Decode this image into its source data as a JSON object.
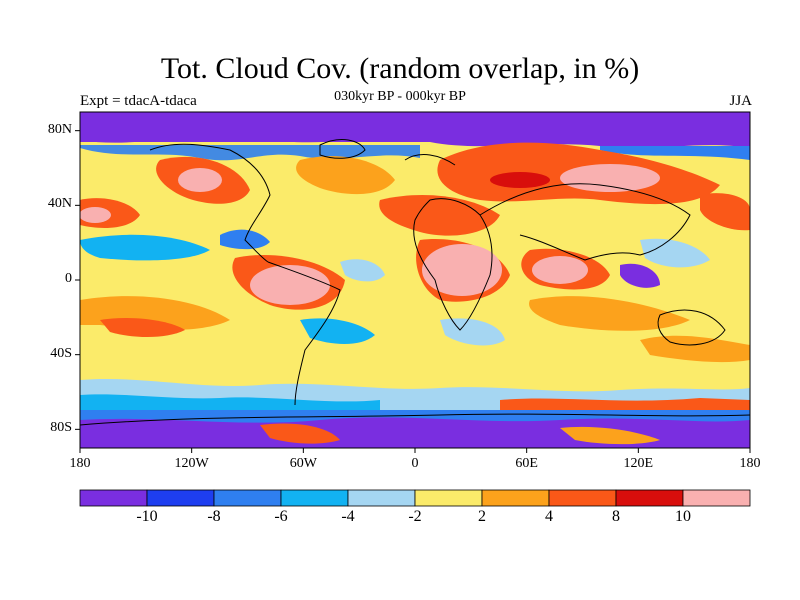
{
  "title": "Tot. Cloud Cov. (random overlap, in %)",
  "left_annotation": "Expt = tdacA-tdaca",
  "center_annotation": "030kyr BP - 000kyr BP",
  "right_annotation": "JJA",
  "x_ticks": [
    "180",
    "120W",
    "60W",
    "0",
    "60E",
    "120E",
    "180"
  ],
  "y_ticks": [
    "80N",
    "40N",
    "0",
    "40S",
    "80S"
  ],
  "colorbar": {
    "colors": [
      "#7a2ee0",
      "#1e3ef0",
      "#2f7ff0",
      "#12b2f2",
      "#a5d6f2",
      "#fbeb6a",
      "#fca21c",
      "#fa5818",
      "#d80e0c",
      "#f9b0b0"
    ],
    "labels": [
      "-10",
      "-8",
      "-6",
      "-4",
      "-2",
      "2",
      "4",
      "8",
      "10"
    ]
  }
}
